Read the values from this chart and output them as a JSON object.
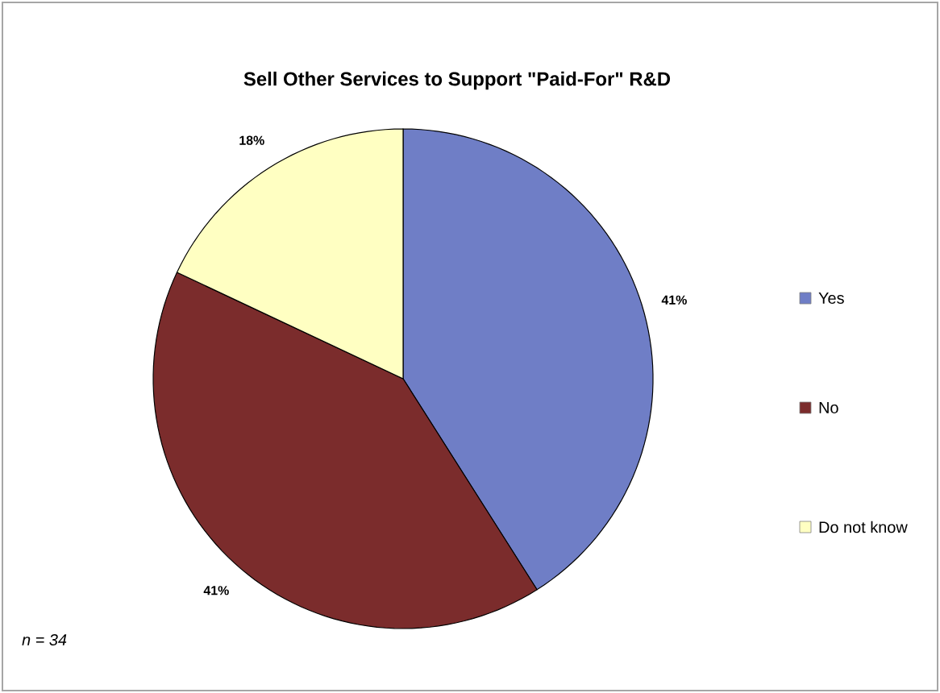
{
  "chart_data": {
    "type": "pie",
    "title": "Sell Other Services to Support \"Paid-For\" R&D",
    "categories": [
      "Yes",
      "No",
      "Do not know"
    ],
    "values": [
      41,
      41,
      18
    ],
    "colors": [
      "#6f7ec6",
      "#7b2c2c",
      "#ffffc2"
    ],
    "value_labels": [
      "41%",
      "41%",
      "18%"
    ],
    "legend": "right",
    "annotations": [
      "n = 34"
    ]
  }
}
